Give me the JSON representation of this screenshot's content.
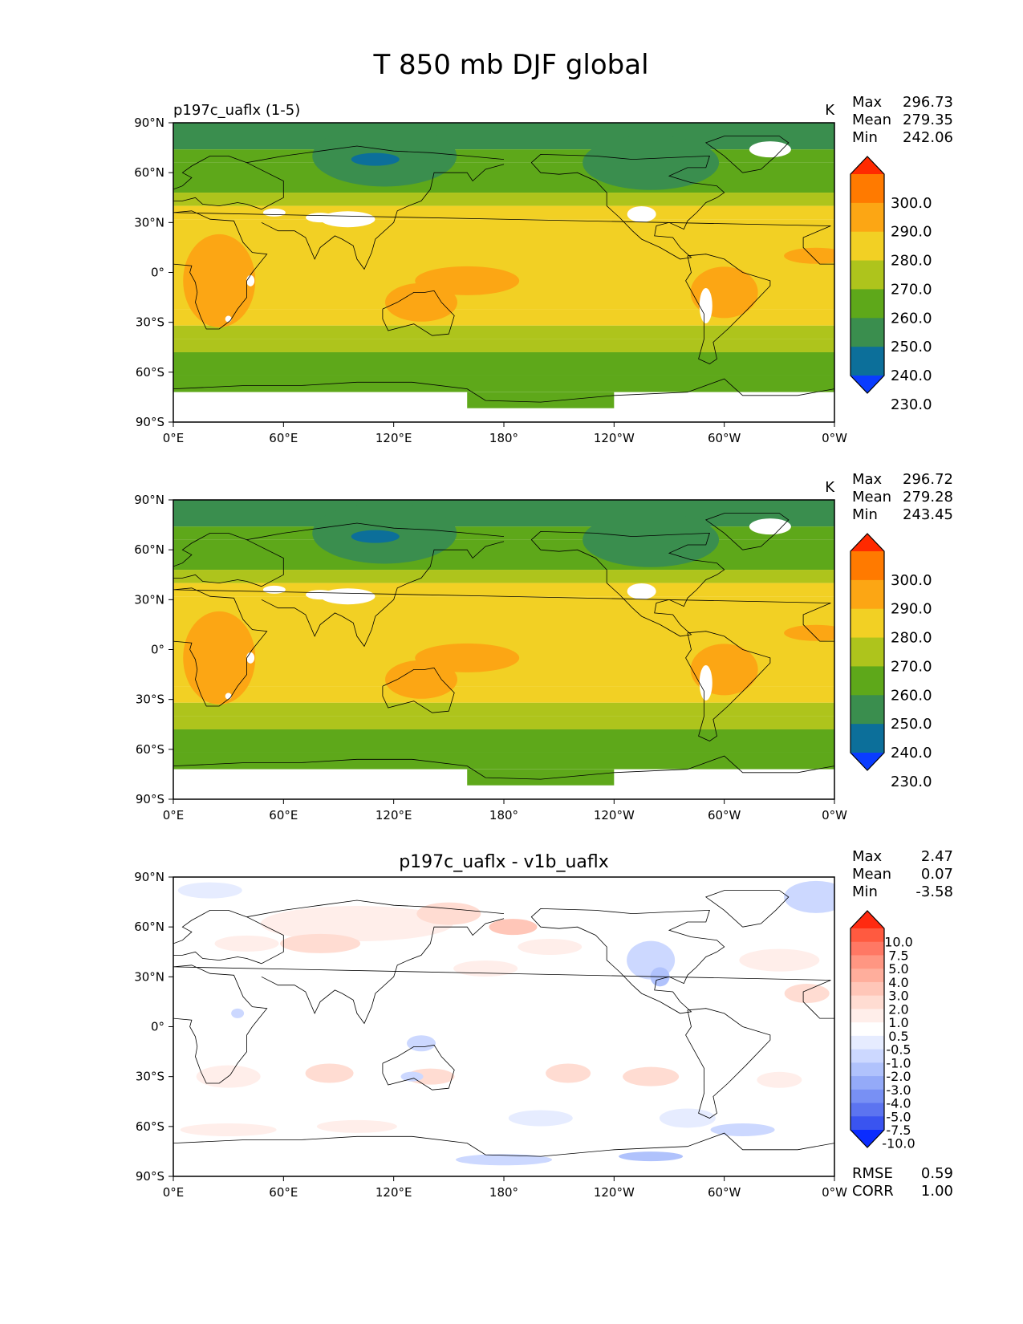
{
  "title": "T 850 mb DJF global",
  "panels": [
    {
      "subtitle_left": "p197c_uaflx (1-5)",
      "subtitle_center": "",
      "units": "K",
      "stats": [
        {
          "label": "Max",
          "value": "296.73"
        },
        {
          "label": "Mean",
          "value": "279.35"
        },
        {
          "label": "Min",
          "value": "242.06"
        }
      ],
      "colorbar": {
        "levels": [
          "300.0",
          "290.0",
          "280.0",
          "270.0",
          "260.0",
          "250.0",
          "240.0",
          "230.0"
        ],
        "colors": [
          "#ff2a00",
          "#ff7a00",
          "#fca614",
          "#f2d024",
          "#aec41c",
          "#5ea81a",
          "#3a8e4e",
          "#0c6f9a",
          "#0a3cff"
        ]
      },
      "footer_stats": []
    },
    {
      "subtitle_left": "",
      "subtitle_center": "",
      "units": "K",
      "stats": [
        {
          "label": "Max",
          "value": "296.72"
        },
        {
          "label": "Mean",
          "value": "279.28"
        },
        {
          "label": "Min",
          "value": "243.45"
        }
      ],
      "colorbar": {
        "levels": [
          "300.0",
          "290.0",
          "280.0",
          "270.0",
          "260.0",
          "250.0",
          "240.0",
          "230.0"
        ],
        "colors": [
          "#ff2a00",
          "#ff7a00",
          "#fca614",
          "#f2d024",
          "#aec41c",
          "#5ea81a",
          "#3a8e4e",
          "#0c6f9a",
          "#0a3cff"
        ]
      },
      "footer_stats": []
    },
    {
      "subtitle_left": "",
      "subtitle_center": "p197c_uaflx - v1b_uaflx",
      "units": "",
      "stats": [
        {
          "label": "Max",
          "value": "2.47"
        },
        {
          "label": "Mean",
          "value": "0.07"
        },
        {
          "label": "Min",
          "value": "-3.58"
        }
      ],
      "colorbar": {
        "levels": [
          "10.0",
          "7.5",
          "5.0",
          "4.0",
          "3.0",
          "2.0",
          "1.0",
          "0.5",
          "-0.5",
          "-1.0",
          "-2.0",
          "-3.0",
          "-4.0",
          "-5.0",
          "-7.5",
          "-10.0"
        ],
        "colors": [
          "#ff2a10",
          "#ff5a40",
          "#ff7864",
          "#ff9682",
          "#ffae9c",
          "#ffc6b8",
          "#ffdcd2",
          "#ffeeea",
          "#ffffff",
          "#e6ecff",
          "#ccd8ff",
          "#b0c2fc",
          "#94aaf8",
          "#7890f4",
          "#5c74f0",
          "#3a54f0",
          "#0a2cff"
        ]
      },
      "footer_stats": [
        {
          "label": "RMSE",
          "value": "0.59"
        },
        {
          "label": "CORR",
          "value": "1.00"
        }
      ]
    }
  ],
  "map_axes": {
    "x_ticks": [
      "0°E",
      "60°E",
      "120°E",
      "180°",
      "120°W",
      "60°W",
      "0°W"
    ],
    "y_ticks": [
      "90°N",
      "60°N",
      "30°N",
      "0°",
      "30°S",
      "60°S",
      "90°S"
    ]
  }
}
